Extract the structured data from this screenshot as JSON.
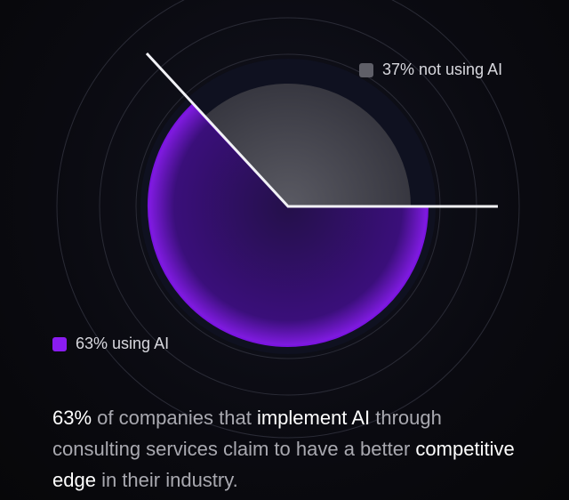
{
  "chart_data": {
    "type": "pie",
    "slices": [
      {
        "label": "37% not using AI",
        "value": 37,
        "color": "#55555e"
      },
      {
        "label": "63% using AI",
        "value": 63,
        "color": "#7a14e0"
      }
    ],
    "legend_placement": "beside slices"
  },
  "caption": {
    "parts": [
      {
        "text": "63%",
        "highlight": true
      },
      {
        "text": " of companies that ",
        "highlight": false
      },
      {
        "text": "implement AI",
        "highlight": true
      },
      {
        "text": " through consulting services claim to have a better ",
        "highlight": false
      },
      {
        "text": "competitive edge",
        "highlight": true
      },
      {
        "text": " in their industry.",
        "highlight": false
      }
    ]
  }
}
